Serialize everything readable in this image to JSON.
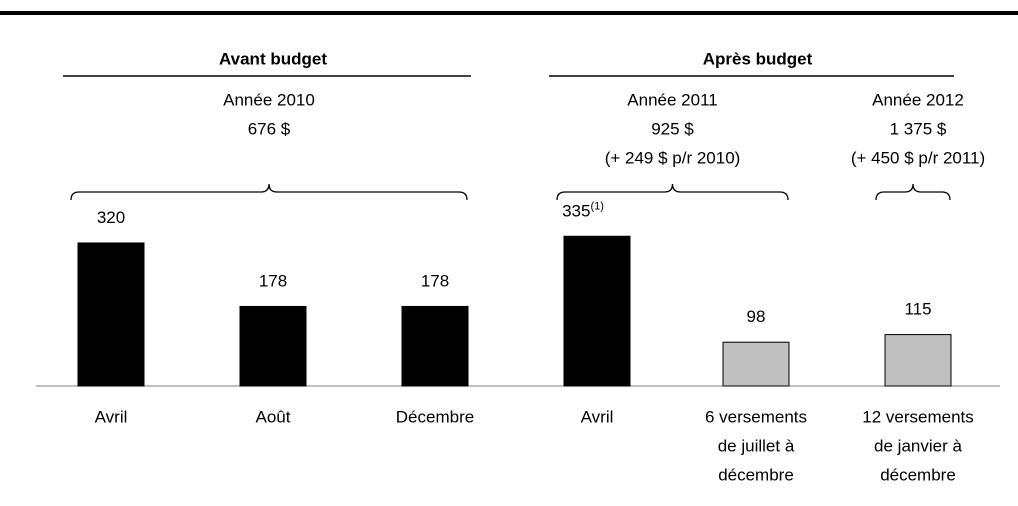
{
  "chart_data": {
    "type": "bar",
    "categories": [
      [
        "Avril"
      ],
      [
        "Août"
      ],
      [
        "Décembre"
      ],
      [
        "Avril"
      ],
      [
        "6 versements",
        "de juillet à",
        "décembre"
      ],
      [
        "12 versements",
        "de janvier à",
        "décembre"
      ]
    ],
    "values": [
      320,
      178,
      178,
      335,
      98,
      115
    ],
    "colors": [
      "#000000",
      "#000000",
      "#000000",
      "#000000",
      "#c0c0c0",
      "#c0c0c0"
    ],
    "annotations": [
      {
        "index": 3,
        "text": "(1)"
      }
    ],
    "groups": [
      {
        "label": "Avant budget",
        "first": 0,
        "last": 2
      },
      {
        "label": "Après budget",
        "first": 3,
        "last": 5
      }
    ],
    "periods": [
      {
        "lines": [
          "Année 2010",
          "676 $"
        ],
        "first": 0,
        "last": 2
      },
      {
        "lines": [
          "Année 2011",
          "925 $",
          "(+ 249 $ p/r 2010)"
        ],
        "first": 3,
        "last": 4
      },
      {
        "lines": [
          "Année 2012",
          "1 375 $",
          "(+ 450 $ p/r 2011)"
        ],
        "first": 5,
        "last": 5
      }
    ]
  }
}
